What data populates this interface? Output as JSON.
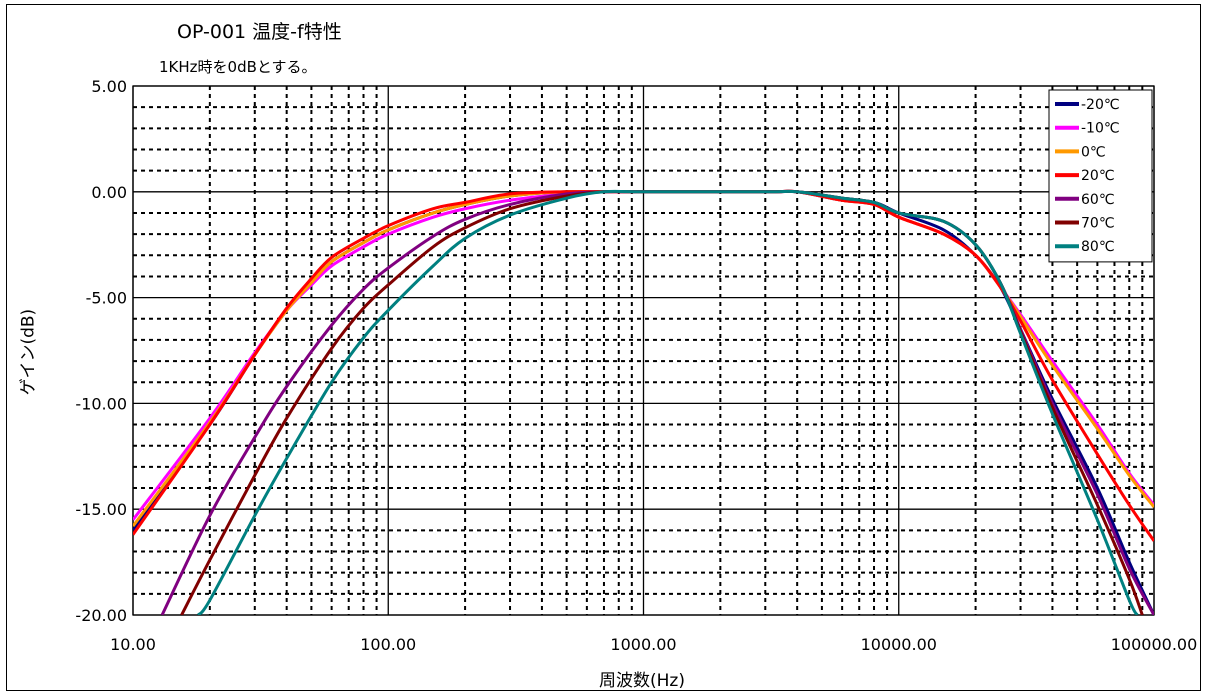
{
  "chart_data": {
    "type": "line",
    "title": "OP-001 温度-f特性",
    "subtitle": "1KHz時を0dBとする。",
    "xlabel": "周波数(Hz)",
    "ylabel": "ゲイン(dB)",
    "x_scale": "log",
    "xlim": [
      10,
      100000
    ],
    "ylim": [
      -20,
      5
    ],
    "x_tick_labels": [
      "10.00",
      "100.00",
      "1000.00",
      "10000.00",
      "100000.00"
    ],
    "y_tick_labels": [
      "5.00",
      "0.00",
      "-5.00",
      "-10.00",
      "-15.00",
      "-20.00"
    ],
    "grid": true,
    "legend_position": "top-right",
    "series": [
      {
        "name": "-20℃",
        "color": "#000080",
        "points": [
          [
            10,
            -16
          ],
          [
            20,
            -11
          ],
          [
            30,
            -7.7
          ],
          [
            40,
            -5.6
          ],
          [
            50,
            -4.3
          ],
          [
            60,
            -3.3
          ],
          [
            80,
            -2.4
          ],
          [
            100,
            -1.8
          ],
          [
            150,
            -1.0
          ],
          [
            200,
            -0.6
          ],
          [
            300,
            -0.2
          ],
          [
            500,
            0
          ],
          [
            1000,
            0
          ],
          [
            3000,
            0
          ],
          [
            4000,
            0
          ],
          [
            6000,
            -0.4
          ],
          [
            8000,
            -0.5
          ],
          [
            10000,
            -1.0
          ],
          [
            15000,
            -1.8
          ],
          [
            20000,
            -3.0
          ],
          [
            25000,
            -4.5
          ],
          [
            30000,
            -6.5
          ],
          [
            40000,
            -9.8
          ],
          [
            60000,
            -14
          ],
          [
            80000,
            -17.5
          ],
          [
            100000,
            -20
          ]
        ]
      },
      {
        "name": "-10℃",
        "color": "#FF00FF",
        "points": [
          [
            10,
            -15.5
          ],
          [
            20,
            -10.7
          ],
          [
            30,
            -7.6
          ],
          [
            40,
            -5.6
          ],
          [
            50,
            -4.4
          ],
          [
            60,
            -3.5
          ],
          [
            80,
            -2.6
          ],
          [
            100,
            -2.0
          ],
          [
            150,
            -1.2
          ],
          [
            200,
            -0.8
          ],
          [
            300,
            -0.4
          ],
          [
            500,
            -0.1
          ],
          [
            700,
            0
          ],
          [
            1000,
            0
          ],
          [
            3000,
            0
          ],
          [
            4000,
            0
          ],
          [
            6000,
            -0.4
          ],
          [
            8000,
            -0.6
          ],
          [
            10000,
            -1.2
          ],
          [
            15000,
            -2.0
          ],
          [
            20000,
            -3.0
          ],
          [
            25000,
            -4.5
          ],
          [
            30000,
            -5.8
          ],
          [
            40000,
            -8.0
          ],
          [
            60000,
            -11
          ],
          [
            80000,
            -13.3
          ],
          [
            100000,
            -14.8
          ]
        ]
      },
      {
        "name": "0℃",
        "color": "#FF9900",
        "points": [
          [
            10,
            -15.8
          ],
          [
            20,
            -10.9
          ],
          [
            30,
            -7.7
          ],
          [
            40,
            -5.6
          ],
          [
            50,
            -4.3
          ],
          [
            60,
            -3.3
          ],
          [
            80,
            -2.4
          ],
          [
            100,
            -1.8
          ],
          [
            150,
            -1.0
          ],
          [
            200,
            -0.6
          ],
          [
            300,
            -0.2
          ],
          [
            500,
            0
          ],
          [
            1000,
            0
          ],
          [
            3000,
            0
          ],
          [
            4000,
            0
          ],
          [
            6000,
            -0.4
          ],
          [
            8000,
            -0.6
          ],
          [
            10000,
            -1.2
          ],
          [
            15000,
            -2.0
          ],
          [
            20000,
            -3.0
          ],
          [
            25000,
            -4.5
          ],
          [
            30000,
            -5.9
          ],
          [
            40000,
            -8.2
          ],
          [
            60000,
            -11.2
          ],
          [
            80000,
            -13.4
          ],
          [
            100000,
            -14.9
          ]
        ]
      },
      {
        "name": "20℃",
        "color": "#FF0000",
        "points": [
          [
            10,
            -16.2
          ],
          [
            20,
            -11
          ],
          [
            30,
            -7.7
          ],
          [
            40,
            -5.5
          ],
          [
            50,
            -4.1
          ],
          [
            60,
            -3.1
          ],
          [
            80,
            -2.2
          ],
          [
            100,
            -1.6
          ],
          [
            150,
            -0.8
          ],
          [
            200,
            -0.5
          ],
          [
            300,
            -0.1
          ],
          [
            500,
            0
          ],
          [
            1000,
            0
          ],
          [
            3000,
            0
          ],
          [
            4000,
            0
          ],
          [
            6000,
            -0.4
          ],
          [
            8000,
            -0.6
          ],
          [
            10000,
            -1.2
          ],
          [
            15000,
            -2.0
          ],
          [
            20000,
            -3.0
          ],
          [
            25000,
            -4.5
          ],
          [
            30000,
            -6.1
          ],
          [
            40000,
            -8.9
          ],
          [
            60000,
            -12.4
          ],
          [
            80000,
            -14.8
          ],
          [
            100000,
            -16.5
          ]
        ]
      },
      {
        "name": "60℃",
        "color": "#800080",
        "points": [
          [
            13,
            -20
          ],
          [
            20,
            -15.3
          ],
          [
            30,
            -11.6
          ],
          [
            40,
            -9.2
          ],
          [
            60,
            -6.3
          ],
          [
            80,
            -4.6
          ],
          [
            100,
            -3.6
          ],
          [
            150,
            -2.1
          ],
          [
            200,
            -1.3
          ],
          [
            300,
            -0.6
          ],
          [
            500,
            -0.1
          ],
          [
            700,
            0
          ],
          [
            1000,
            0
          ],
          [
            3000,
            0
          ],
          [
            4000,
            0
          ],
          [
            6000,
            -0.3
          ],
          [
            8000,
            -0.5
          ],
          [
            10000,
            -1.0
          ],
          [
            15000,
            -1.4
          ],
          [
            20000,
            -2.5
          ],
          [
            25000,
            -4.3
          ],
          [
            30000,
            -6.5
          ],
          [
            40000,
            -10.0
          ],
          [
            60000,
            -14.3
          ],
          [
            80000,
            -17.8
          ],
          [
            100000,
            -20
          ]
        ]
      },
      {
        "name": "70℃",
        "color": "#800000",
        "points": [
          [
            15.5,
            -20
          ],
          [
            20,
            -17.4
          ],
          [
            30,
            -13.4
          ],
          [
            40,
            -10.7
          ],
          [
            60,
            -7.4
          ],
          [
            80,
            -5.5
          ],
          [
            100,
            -4.4
          ],
          [
            150,
            -2.6
          ],
          [
            200,
            -1.7
          ],
          [
            300,
            -0.8
          ],
          [
            500,
            -0.2
          ],
          [
            700,
            0
          ],
          [
            1000,
            0
          ],
          [
            3000,
            0
          ],
          [
            4000,
            0
          ],
          [
            6000,
            -0.3
          ],
          [
            8000,
            -0.5
          ],
          [
            10000,
            -1.0
          ],
          [
            15000,
            -1.4
          ],
          [
            20000,
            -2.5
          ],
          [
            25000,
            -4.3
          ],
          [
            30000,
            -6.6
          ],
          [
            40000,
            -10.2
          ],
          [
            60000,
            -14.8
          ],
          [
            80000,
            -18.3
          ],
          [
            90000,
            -20
          ]
        ]
      },
      {
        "name": "80℃",
        "color": "#008080",
        "points": [
          [
            18,
            -20
          ],
          [
            20,
            -19.3
          ],
          [
            30,
            -15.3
          ],
          [
            40,
            -12.6
          ],
          [
            60,
            -9.0
          ],
          [
            80,
            -6.9
          ],
          [
            100,
            -5.6
          ],
          [
            150,
            -3.5
          ],
          [
            200,
            -2.2
          ],
          [
            300,
            -1.1
          ],
          [
            500,
            -0.3
          ],
          [
            700,
            0
          ],
          [
            1000,
            0
          ],
          [
            3000,
            0
          ],
          [
            4000,
            0
          ],
          [
            6000,
            -0.3
          ],
          [
            8000,
            -0.5
          ],
          [
            10000,
            -1.0
          ],
          [
            15000,
            -1.4
          ],
          [
            20000,
            -2.5
          ],
          [
            25000,
            -4.3
          ],
          [
            30000,
            -6.7
          ],
          [
            40000,
            -10.5
          ],
          [
            60000,
            -15.5
          ],
          [
            80000,
            -19.3
          ],
          [
            86000,
            -20
          ]
        ]
      }
    ]
  }
}
